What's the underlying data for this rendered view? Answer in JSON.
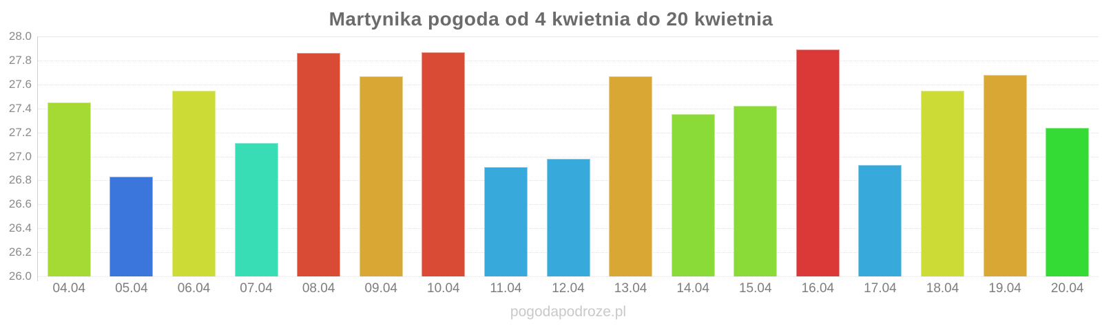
{
  "title": "Martynika pogoda od 4 kwietnia do 20 kwietnia",
  "watermark": "pogodapodroze.pl",
  "colors": {
    "background": "#ffffff",
    "title_text": "#6b6b6b",
    "y_axis_label": "#8a8a8a",
    "x_axis_label": "#7d7d7d",
    "axis_line": "#cfcfcf",
    "gridline": "#e2e2e2",
    "watermark_text": "#c9c9c9"
  },
  "chart_data": {
    "type": "bar",
    "title": "Martynika pogoda od 4 kwietnia do 20 kwietnia",
    "xlabel": "",
    "ylabel": "",
    "categories": [
      "04.04",
      "05.04",
      "06.04",
      "07.04",
      "08.04",
      "09.04",
      "10.04",
      "11.04",
      "12.04",
      "13.04",
      "14.04",
      "15.04",
      "16.04",
      "17.04",
      "18.04",
      "19.04",
      "20.04"
    ],
    "values": [
      27.45,
      26.83,
      27.55,
      27.11,
      27.86,
      27.67,
      27.87,
      26.91,
      26.98,
      27.67,
      27.35,
      27.42,
      27.89,
      26.93,
      27.55,
      27.68,
      27.24
    ],
    "bar_colors": [
      "#A4DA33",
      "#3A76DB",
      "#CDDB36",
      "#38DCB5",
      "#DA4B35",
      "#D9A733",
      "#DA4B35",
      "#38A9DB",
      "#38A9DB",
      "#D9A733",
      "#8BDB38",
      "#8BDB38",
      "#DB3838",
      "#38A9DB",
      "#CDDB36",
      "#D9A733",
      "#35DB35"
    ],
    "ylim": [
      26.0,
      28.0
    ],
    "y_tick_step": 0.2,
    "y_tick_labels": [
      "28.0",
      "27.8",
      "27.6",
      "27.4",
      "27.2",
      "27.0",
      "26.8",
      "26.6",
      "26.4",
      "26.2",
      "26.0"
    ],
    "grid": "horizontal",
    "legend_position": "none"
  }
}
